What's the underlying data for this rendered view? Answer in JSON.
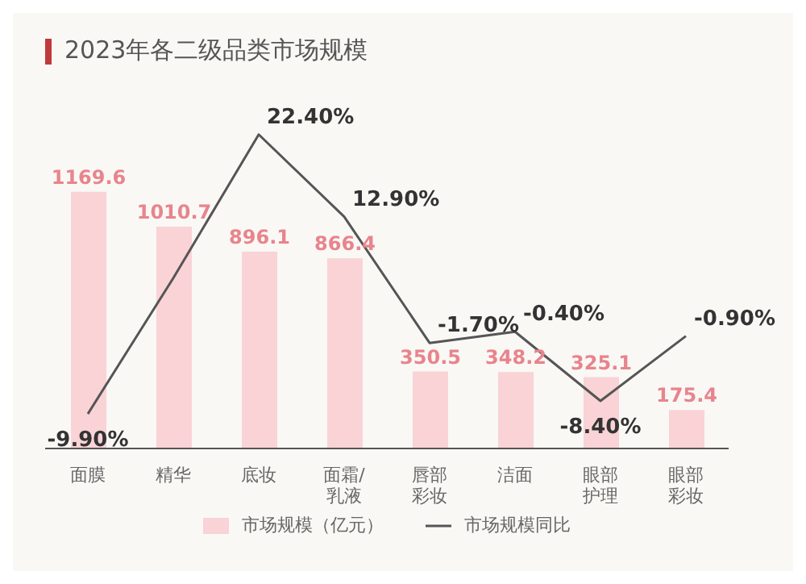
{
  "chart_data": {
    "type": "bar",
    "title": "2023年各二级品类市场规模",
    "categories": [
      "面膜",
      "精华",
      "底妆",
      "面霜/乳液",
      "唇部彩妆",
      "洁面",
      "眼部护理",
      "眼部彩妆"
    ],
    "series": [
      {
        "name": "市场规模（亿元）",
        "color": "#f9d3d6",
        "values": [
          1169.6,
          1010.7,
          896.1,
          866.4,
          350.5,
          348.2,
          325.1,
          175.4
        ]
      },
      {
        "name": "市场规模同比",
        "type": "line",
        "axis": "y2",
        "color": "#555555",
        "values": [
          -9.9,
          5.8,
          22.4,
          12.9,
          -1.7,
          -0.4,
          -8.4,
          -0.9
        ],
        "value_labels": [
          "-9.90%",
          null,
          "22.40%",
          "12.90%",
          "-1.70%",
          "-0.40%",
          "-8.40%",
          "-0.90%"
        ]
      }
    ],
    "data_labels": true,
    "legend": "bottom",
    "grid": false,
    "marker": "none",
    "tick_labels": "x"
  }
}
